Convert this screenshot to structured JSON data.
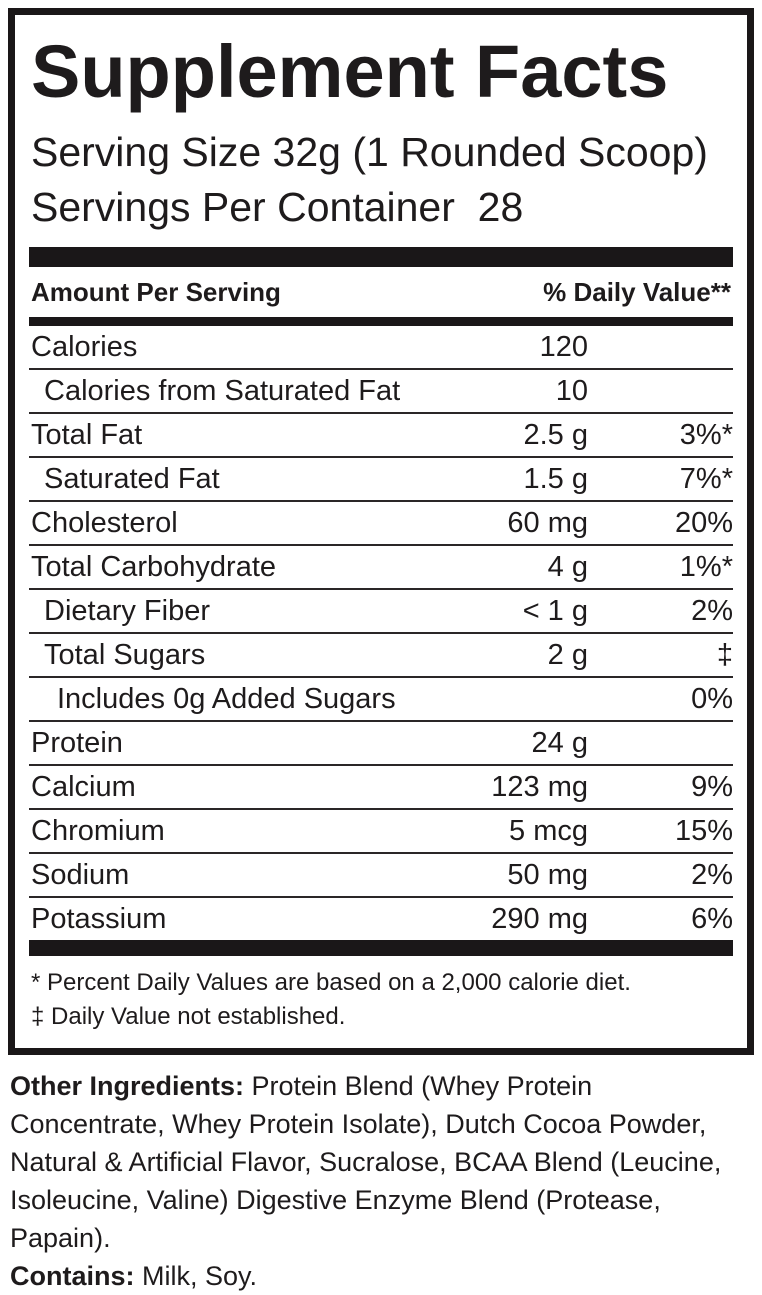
{
  "title": "Supplement Facts",
  "serving": {
    "size_line": "Serving Size 32g (1 Rounded Scoop)",
    "per_container_line": "Servings Per Container  28"
  },
  "table": {
    "header": {
      "amount_label": "Amount Per Serving",
      "dv_label": "% Daily Value**"
    },
    "rows": [
      {
        "name": "Calories",
        "amount": "120",
        "dv": "",
        "indent": 0
      },
      {
        "name": "Calories from Saturated Fat",
        "amount": "10",
        "dv": "",
        "indent": 1
      },
      {
        "name": "Total Fat",
        "amount": "2.5 g",
        "dv": "3%*",
        "indent": 0
      },
      {
        "name": "Saturated Fat",
        "amount": "1.5 g",
        "dv": "7%*",
        "indent": 1
      },
      {
        "name": "Cholesterol",
        "amount": "60 mg",
        "dv": "20%",
        "indent": 0
      },
      {
        "name": "Total Carbohydrate",
        "amount": "4 g",
        "dv": "1%*",
        "indent": 0
      },
      {
        "name": "Dietary Fiber",
        "amount": "< 1 g",
        "dv": "2%",
        "indent": 1
      },
      {
        "name": "Total Sugars",
        "amount": "2 g",
        "dv": "‡",
        "indent": 1
      },
      {
        "name": "Includes 0g Added Sugars",
        "amount": "",
        "dv": "0%",
        "indent": 2
      },
      {
        "name": "Protein",
        "amount": "24 g",
        "dv": "",
        "indent": 0
      },
      {
        "name": "Calcium",
        "amount": "123 mg",
        "dv": "9%",
        "indent": 0
      },
      {
        "name": "Chromium",
        "amount": "5 mcg",
        "dv": "15%",
        "indent": 0
      },
      {
        "name": "Sodium",
        "amount": "50 mg",
        "dv": "2%",
        "indent": 0
      },
      {
        "name": "Potassium",
        "amount": "290 mg",
        "dv": "6%",
        "indent": 0
      }
    ]
  },
  "footnotes": [
    "* Percent Daily Values are based on a 2,000 calorie diet.",
    "‡ Daily Value not established."
  ],
  "other_ingredients": {
    "label": "Other Ingredients:",
    "text": " Protein Blend (Whey Protein Concentrate, Whey Protein Isolate), Dutch Cocoa Powder, Natural & Artificial Flavor, Sucralose, BCAA Blend (Leucine, Isoleucine, Valine) Digestive Enzyme Blend (Protease, Papain)."
  },
  "contains": {
    "label": "Contains:",
    "text": " Milk, Soy."
  },
  "colors": {
    "ink": "#1a1718",
    "background": "#ffffff"
  }
}
